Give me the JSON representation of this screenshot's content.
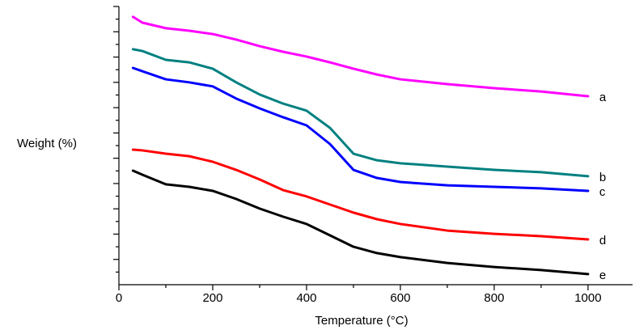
{
  "chart_data": {
    "type": "line",
    "x_label": "Temperature (°C)",
    "y_label": "Weight (%)",
    "x": [
      30,
      50,
      100,
      150,
      200,
      250,
      300,
      350,
      400,
      450,
      500,
      550,
      600,
      700,
      800,
      900,
      1000
    ],
    "series": [
      {
        "name": "a",
        "color": "#ff00ff",
        "values": [
          105.9,
          103.6,
          101.4,
          100.4,
          99.1,
          96.9,
          94.3,
          92.1,
          90.2,
          87.9,
          85.4,
          83.1,
          81.2,
          79.3,
          77.7,
          76.4,
          74.5
        ]
      },
      {
        "name": "b",
        "color": "#008080",
        "values": [
          93.1,
          92.4,
          88.9,
          87.9,
          85.4,
          80.0,
          75.2,
          71.6,
          68.8,
          62.0,
          51.8,
          49.2,
          48.0,
          46.7,
          45.4,
          44.5,
          42.9
        ]
      },
      {
        "name": "c",
        "color": "#0000ff",
        "values": [
          85.7,
          84.4,
          81.2,
          80.0,
          78.4,
          73.6,
          69.7,
          66.2,
          63.0,
          55.6,
          45.4,
          42.2,
          40.6,
          39.3,
          38.7,
          38.1,
          37.1
        ]
      },
      {
        "name": "d",
        "color": "#ff0000",
        "values": [
          53.4,
          53.1,
          51.8,
          50.8,
          48.6,
          45.4,
          41.6,
          37.4,
          34.9,
          31.7,
          28.5,
          25.9,
          24.0,
          21.4,
          20.1,
          19.2,
          17.9
        ]
      },
      {
        "name": "e",
        "color": "#000000",
        "values": [
          45.1,
          43.5,
          39.7,
          38.7,
          37.1,
          33.9,
          30.1,
          26.9,
          24.0,
          19.5,
          15.0,
          12.5,
          10.9,
          8.6,
          7.0,
          5.8,
          4.2
        ]
      }
    ],
    "xlim": [
      0,
      1095
    ],
    "xticks": [
      0,
      200,
      400,
      600,
      800,
      1000
    ],
    "ylim": [
      0,
      110
    ],
    "yticks": [
      10,
      20,
      30,
      40,
      50,
      60,
      70,
      80,
      90,
      100,
      110
    ],
    "y_tick_labels": false,
    "grid": false
  }
}
